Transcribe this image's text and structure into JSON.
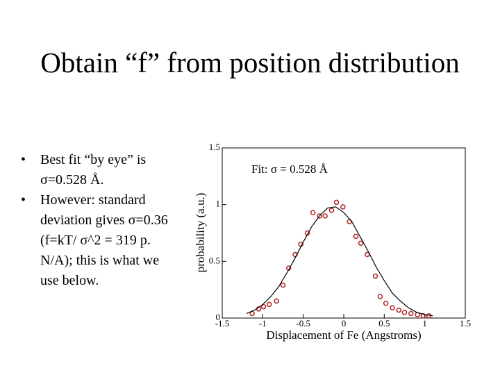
{
  "title": "Obtain “f” from position distribution",
  "bullets": [
    "Best fit “by eye” is σ=0.528 Å.",
    "However: standard deviation gives σ=0.36 (f=kT/ σ^2 = 319 p. N/A); this is what we use below."
  ],
  "chart_data": {
    "type": "scatter",
    "annotation": "Fit: σ = 0.528 Å",
    "x_label": "Displacement of Fe (Angstroms)",
    "y_label": "probability (a.u.)",
    "xlim": [
      -1.5,
      1.5
    ],
    "xticks": [
      -1.5,
      -1,
      -0.5,
      0,
      0.5,
      1,
      1.5
    ],
    "ylim": [
      0,
      1.5
    ],
    "yticks": [
      0,
      0.5,
      1,
      1.5
    ],
    "series": [
      {
        "type": "scatter",
        "color": "#b22222",
        "x": [
          -1.13,
          -1.05,
          -0.99,
          -0.92,
          -0.83,
          -0.75,
          -0.68,
          -0.6,
          -0.53,
          -0.45,
          -0.38,
          -0.3,
          -0.23,
          -0.15,
          -0.09,
          -0.01,
          0.07,
          0.15,
          0.21,
          0.29,
          0.39,
          0.45,
          0.52,
          0.6,
          0.68,
          0.75,
          0.83,
          0.91,
          0.98,
          1.05
        ],
        "values": [
          0.04,
          0.08,
          0.1,
          0.12,
          0.15,
          0.29,
          0.44,
          0.56,
          0.65,
          0.75,
          0.93,
          0.9,
          0.9,
          0.95,
          1.02,
          0.98,
          0.85,
          0.72,
          0.66,
          0.56,
          0.37,
          0.19,
          0.13,
          0.09,
          0.07,
          0.05,
          0.04,
          0.03,
          0.02,
          0.02
        ]
      },
      {
        "type": "line",
        "color": "#000000",
        "x": [
          -1.2,
          -1.1,
          -1.0,
          -0.9,
          -0.8,
          -0.7,
          -0.6,
          -0.5,
          -0.4,
          -0.3,
          -0.2,
          -0.1,
          0,
          0.1,
          0.2,
          0.3,
          0.4,
          0.5,
          0.6,
          0.7,
          0.8,
          0.9,
          1.0,
          1.1
        ],
        "values": [
          0.04,
          0.07,
          0.12,
          0.19,
          0.28,
          0.4,
          0.53,
          0.67,
          0.8,
          0.9,
          0.97,
          0.98,
          0.93,
          0.85,
          0.72,
          0.59,
          0.45,
          0.33,
          0.22,
          0.15,
          0.09,
          0.05,
          0.03,
          0.02
        ]
      }
    ]
  }
}
